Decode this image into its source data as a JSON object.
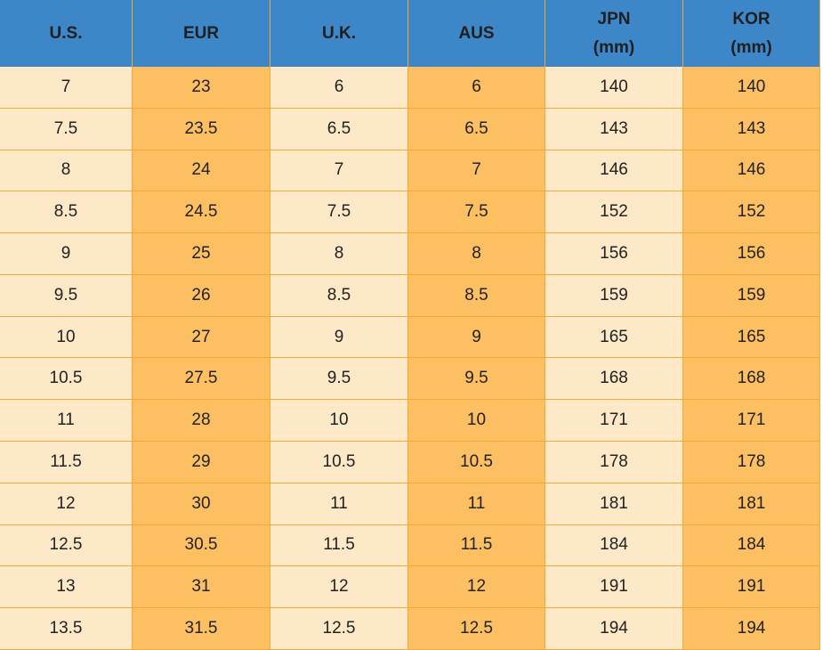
{
  "table": {
    "header": [
      "U.S.",
      "EUR",
      "U.K.",
      "AUS",
      "JPN\n(mm)",
      "KOR\n(mm)"
    ],
    "rows": [
      [
        7,
        23,
        6,
        6,
        140,
        140
      ],
      [
        7.5,
        23.5,
        6.5,
        6.5,
        143,
        143
      ],
      [
        8,
        24,
        7,
        7,
        146,
        146
      ],
      [
        8.5,
        24.5,
        7.5,
        7.5,
        152,
        152
      ],
      [
        9,
        25,
        8,
        8,
        156,
        156
      ],
      [
        9.5,
        26,
        8.5,
        8.5,
        159,
        159
      ],
      [
        10,
        27,
        9,
        9,
        165,
        165
      ],
      [
        10.5,
        27.5,
        9.5,
        9.5,
        168,
        168
      ],
      [
        11,
        28,
        10,
        10,
        171,
        171
      ],
      [
        11.5,
        29,
        10.5,
        10.5,
        178,
        178
      ],
      [
        12,
        30,
        11,
        11,
        181,
        181
      ],
      [
        12.5,
        30.5,
        11.5,
        11.5,
        184,
        184
      ],
      [
        13,
        31,
        12,
        12,
        191,
        191
      ],
      [
        13.5,
        31.5,
        12.5,
        12.5,
        194,
        194
      ]
    ]
  }
}
